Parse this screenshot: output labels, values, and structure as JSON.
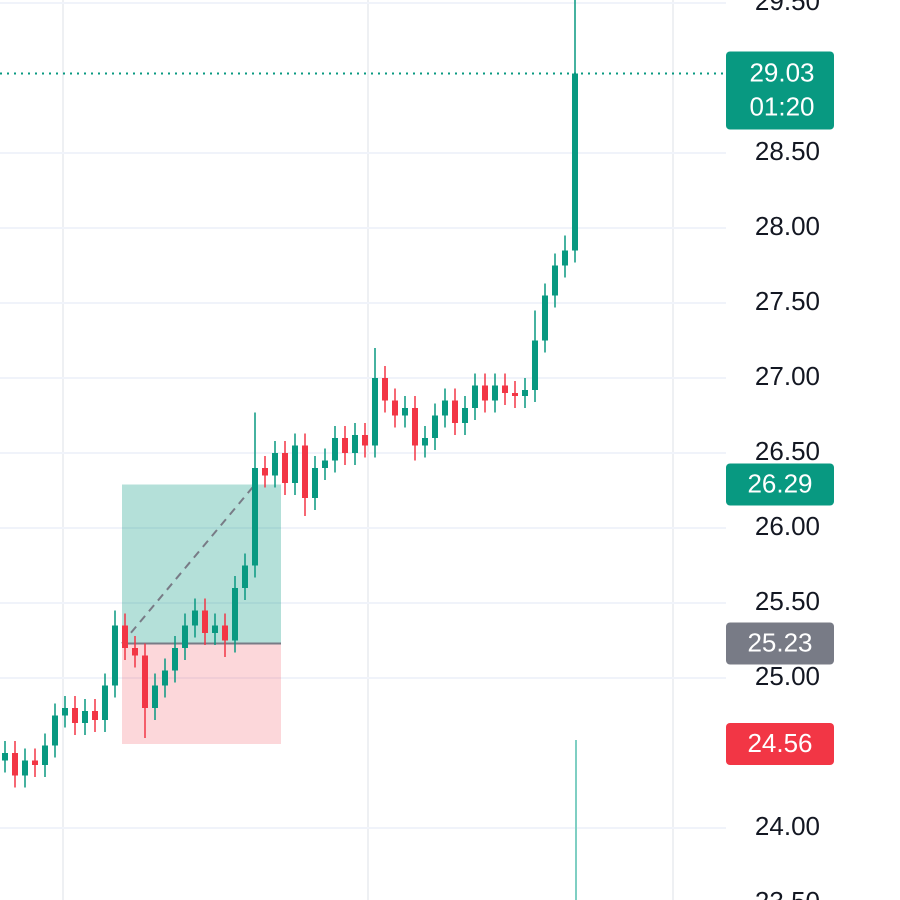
{
  "chart_data": {
    "type": "candlestick",
    "open": [
      24.45,
      24.5,
      24.35,
      24.45,
      24.42,
      24.55,
      24.75,
      24.8,
      24.7,
      24.78,
      24.72,
      24.95,
      25.35,
      25.2,
      25.15,
      24.8,
      24.95,
      25.05,
      25.2,
      25.35,
      25.45,
      25.3,
      25.35,
      25.25,
      25.6,
      25.75,
      26.4,
      26.35,
      26.5,
      26.3,
      26.55,
      26.2,
      26.4,
      26.45,
      26.6,
      26.5,
      26.62,
      26.55,
      27.0,
      26.85,
      26.75,
      26.8,
      26.55,
      26.6,
      26.75,
      26.85,
      26.7,
      26.8,
      26.95,
      26.85,
      26.95,
      26.9,
      26.88,
      26.92,
      27.25,
      27.55,
      27.75,
      27.85
    ],
    "high": [
      24.58,
      24.58,
      24.53,
      24.53,
      24.63,
      24.83,
      24.88,
      24.88,
      24.86,
      24.86,
      25.03,
      25.45,
      25.43,
      25.28,
      25.23,
      25.03,
      25.13,
      25.28,
      25.43,
      25.53,
      25.53,
      25.43,
      25.43,
      25.68,
      25.83,
      26.77,
      26.48,
      26.58,
      26.58,
      26.63,
      26.63,
      26.48,
      26.53,
      26.68,
      26.68,
      26.7,
      26.7,
      27.2,
      27.08,
      26.93,
      26.88,
      26.88,
      26.68,
      26.83,
      26.93,
      26.93,
      26.88,
      27.03,
      27.03,
      27.03,
      27.03,
      26.98,
      27.0,
      27.45,
      27.63,
      27.83,
      27.95,
      29.52
    ],
    "low": [
      24.37,
      24.27,
      24.27,
      24.34,
      24.34,
      24.47,
      24.67,
      24.62,
      24.62,
      24.64,
      24.64,
      24.87,
      25.12,
      25.07,
      24.6,
      24.72,
      24.87,
      24.97,
      25.12,
      25.27,
      25.22,
      25.22,
      25.14,
      25.17,
      25.52,
      25.67,
      26.27,
      26.27,
      26.22,
      26.22,
      26.08,
      26.12,
      26.32,
      26.37,
      26.42,
      26.42,
      26.47,
      26.47,
      26.77,
      26.67,
      26.67,
      26.45,
      26.47,
      26.52,
      26.67,
      26.62,
      26.62,
      26.72,
      26.77,
      26.77,
      26.82,
      26.8,
      26.8,
      26.84,
      27.17,
      27.47,
      27.67,
      27.77
    ],
    "close": [
      24.5,
      24.35,
      24.45,
      24.42,
      24.55,
      24.75,
      24.8,
      24.7,
      24.78,
      24.72,
      24.95,
      25.35,
      25.2,
      25.15,
      24.8,
      24.95,
      25.05,
      25.2,
      25.35,
      25.45,
      25.3,
      25.35,
      25.25,
      25.6,
      25.75,
      26.4,
      26.35,
      26.5,
      26.3,
      26.55,
      26.2,
      26.4,
      26.45,
      26.6,
      26.5,
      26.62,
      26.55,
      27.0,
      26.85,
      26.75,
      26.8,
      26.55,
      26.6,
      26.75,
      26.85,
      26.7,
      26.8,
      26.95,
      26.85,
      26.95,
      26.9,
      26.88,
      26.92,
      27.25,
      27.55,
      27.75,
      27.85,
      29.03
    ],
    "up_color": "#089981",
    "down_color": "#f23645",
    "ylim": [
      23.52,
      29.52
    ],
    "yticks": [
      {
        "value": 29.5,
        "label": "29.50"
      },
      {
        "value": 28.5,
        "label": "28.50"
      },
      {
        "value": 28,
        "label": "28.00"
      },
      {
        "value": 27.5,
        "label": "27.50"
      },
      {
        "value": 27,
        "label": "27.00"
      },
      {
        "value": 26.5,
        "label": "26.50"
      },
      {
        "value": 26,
        "label": "26.00"
      },
      {
        "value": 25.5,
        "label": "25.50"
      },
      {
        "value": 25,
        "label": "25.00"
      },
      {
        "value": 24,
        "label": "24.00"
      },
      {
        "value": 23.5,
        "label": "23.50"
      }
    ],
    "grid": true,
    "last_price": 29.03,
    "countdown": "01:20",
    "position": {
      "target": 26.29,
      "entry": 25.23,
      "stop": 24.56,
      "target_color": "#089981",
      "entry_color": "#787b86",
      "stop_color": "#f23645"
    }
  }
}
